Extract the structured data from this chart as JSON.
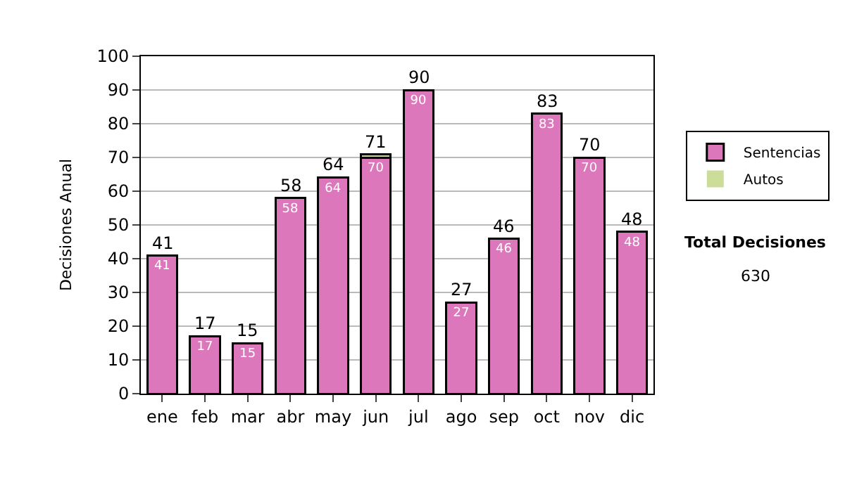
{
  "chart_data": {
    "type": "bar",
    "stacked": true,
    "ylabel": "Decisiones Anual",
    "categories": [
      "ene",
      "feb",
      "mar",
      "abr",
      "may",
      "jun",
      "jul",
      "ago",
      "sep",
      "oct",
      "nov",
      "dic"
    ],
    "series": [
      {
        "name": "Sentencias",
        "color": "#dd77bb",
        "values": [
          41,
          17,
          15,
          58,
          64,
          70,
          90,
          27,
          46,
          83,
          70,
          48
        ],
        "value_labels": [
          "41",
          "17",
          "15",
          "58",
          "64",
          "70",
          "90",
          "27",
          "46",
          "83",
          "70",
          "48"
        ]
      },
      {
        "name": "Autos",
        "color": "#ccdd99",
        "values": [
          0,
          0,
          0,
          0,
          0,
          1,
          0,
          0,
          0,
          0,
          0,
          0
        ]
      }
    ],
    "totals": [
      "41",
      "17",
      "15",
      "58",
      "64",
      "71",
      "90",
      "27",
      "46",
      "83",
      "70",
      "48"
    ],
    "ylim": [
      0,
      100
    ],
    "yticks": [
      0,
      10,
      20,
      30,
      40,
      50,
      60,
      70,
      80,
      90,
      100
    ],
    "grid": "y",
    "legend": "right",
    "annotations": [
      "Total Decisiones",
      "630"
    ]
  }
}
